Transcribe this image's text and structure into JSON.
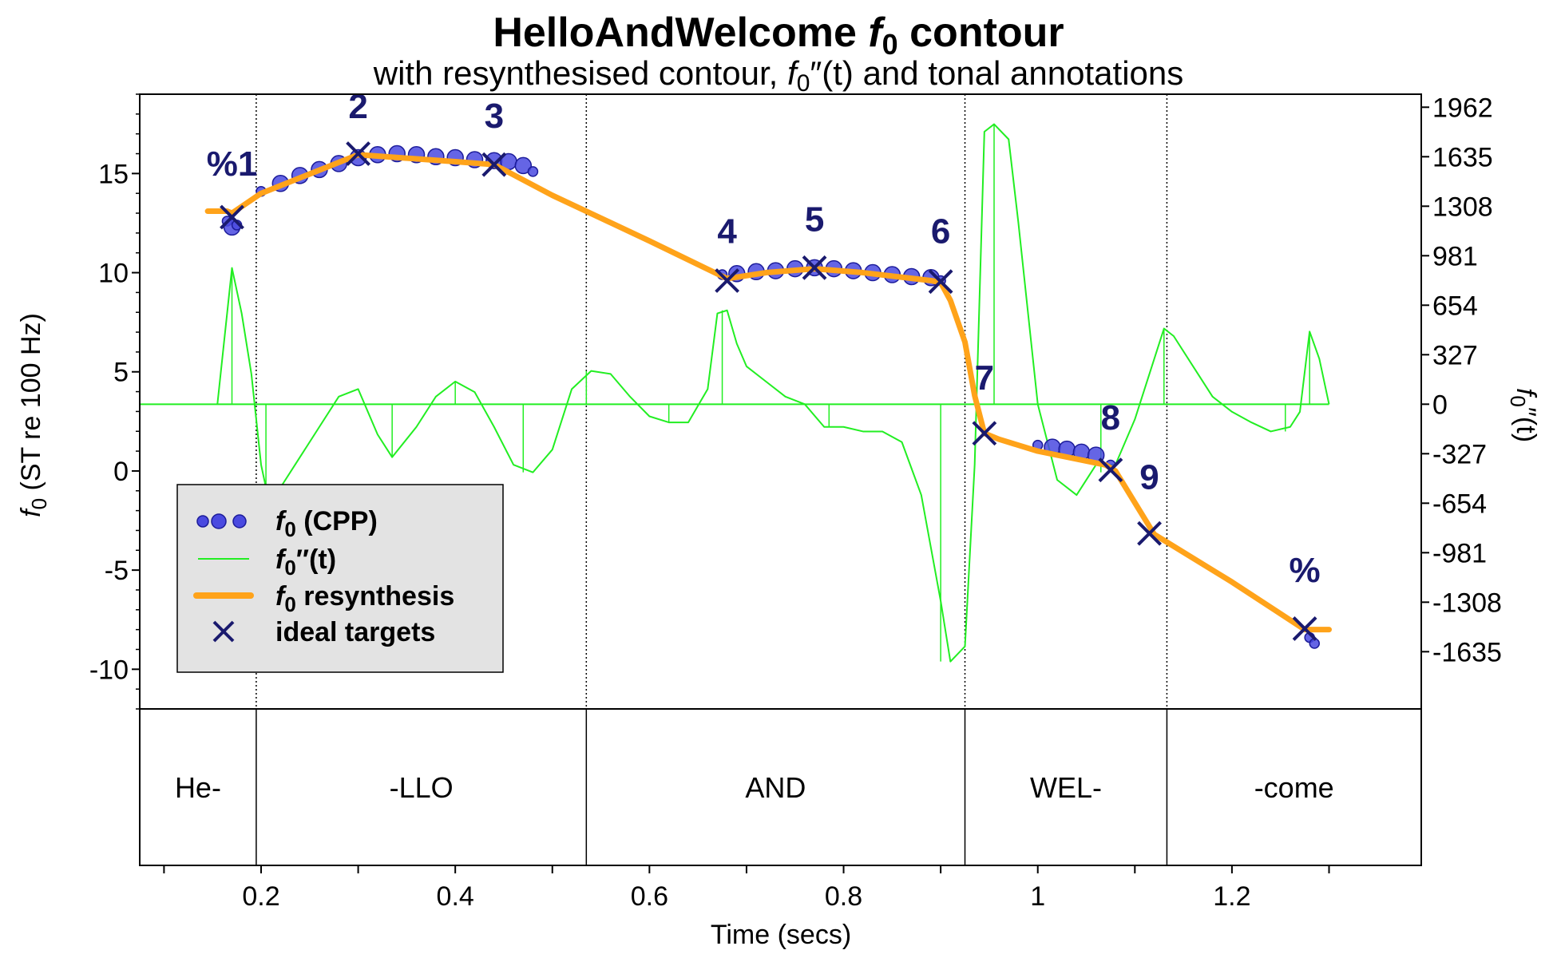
{
  "colors": {
    "cpp": "#4a4ae0",
    "cpp_edge": "#1c1c9a",
    "deriv": "#22ee22",
    "resynth": "#ffa31a",
    "target": "#1a1a6e",
    "legend_bg": "#e3e3e3"
  },
  "chart_data": {
    "type": "line",
    "title_main": "HelloAndWelcome ",
    "title_f": "f",
    "title_sub": "0",
    "title_end": " contour",
    "subtitle_a": "with resynthesised contour, ",
    "subtitle_f": "f",
    "subtitle_sub": "0",
    "subtitle_b": "″(t) and tonal annotations",
    "xlabel": "Time (secs)",
    "ylabel_f": "f",
    "ylabel_sub": "0",
    "ylabel_rest": " (ST re 100 Hz)",
    "y2label_f": "f",
    "y2label_sub": "0",
    "y2label_rest": "″(t)",
    "xlim": [
      0.075,
      1.395
    ],
    "ylim": [
      -12,
      19
    ],
    "y2lim": [
      -2013,
      2048
    ],
    "x_ticks": [
      0.1,
      0.2,
      0.3,
      0.4,
      0.5,
      0.6,
      0.7,
      0.8,
      0.9,
      1.0,
      1.1,
      1.2,
      1.3
    ],
    "x_tick_labels": [
      {
        "value": 0.2,
        "label": "0.2"
      },
      {
        "value": 0.4,
        "label": "0.4"
      },
      {
        "value": 0.6,
        "label": "0.6"
      },
      {
        "value": 0.8,
        "label": "0.8"
      },
      {
        "value": 1.0,
        "label": "1"
      },
      {
        "value": 1.2,
        "label": "1.2"
      }
    ],
    "y_ticks": [
      -10,
      -5,
      0,
      5,
      10,
      15
    ],
    "y_tick_labels": [
      "-10",
      "-5",
      "0",
      "5",
      "10",
      "15"
    ],
    "y2_ticks": [
      -1635,
      -1308,
      -981,
      -654,
      -327,
      0,
      327,
      654,
      981,
      1308,
      1635,
      1962
    ],
    "y2_tick_labels": [
      "-1635",
      "-1308",
      "-981",
      "-654",
      "-327",
      "0",
      "327",
      "654",
      "981",
      "1308",
      "1635",
      "1962"
    ],
    "syllable_boundaries": [
      0.195,
      0.535,
      0.925,
      1.133
    ],
    "syllables": [
      {
        "label": "He-",
        "start": 0.075,
        "end": 0.195
      },
      {
        "label": "-LLO",
        "start": 0.195,
        "end": 0.535
      },
      {
        "label": "AND",
        "start": 0.535,
        "end": 0.925
      },
      {
        "label": "WEL-",
        "start": 0.925,
        "end": 1.133
      },
      {
        "label": "-come",
        "start": 1.133,
        "end": 1.395
      }
    ],
    "series": [
      {
        "name": "f0 (CPP)",
        "kind": "scatter",
        "segments": [
          [
            [
              0.165,
              12.6
            ],
            [
              0.17,
              12.3
            ],
            [
              0.175,
              12.4
            ]
          ],
          [
            [
              0.2,
              14.1
            ],
            [
              0.22,
              14.5
            ],
            [
              0.24,
              14.9
            ],
            [
              0.26,
              15.2
            ],
            [
              0.28,
              15.5
            ],
            [
              0.3,
              15.8
            ],
            [
              0.32,
              15.95
            ],
            [
              0.34,
              16.0
            ],
            [
              0.36,
              15.95
            ],
            [
              0.38,
              15.85
            ],
            [
              0.4,
              15.8
            ],
            [
              0.42,
              15.7
            ],
            [
              0.44,
              15.65
            ],
            [
              0.455,
              15.6
            ],
            [
              0.47,
              15.4
            ],
            [
              0.48,
              15.1
            ]
          ],
          [
            [
              0.675,
              9.9
            ],
            [
              0.69,
              9.95
            ],
            [
              0.71,
              10.05
            ],
            [
              0.73,
              10.1
            ],
            [
              0.75,
              10.2
            ],
            [
              0.77,
              10.25
            ],
            [
              0.79,
              10.2
            ],
            [
              0.81,
              10.1
            ],
            [
              0.83,
              10.0
            ],
            [
              0.85,
              9.9
            ],
            [
              0.87,
              9.8
            ],
            [
              0.89,
              9.75
            ],
            [
              0.9,
              9.6
            ]
          ],
          [
            [
              1.0,
              1.3
            ],
            [
              1.015,
              1.2
            ],
            [
              1.03,
              1.1
            ],
            [
              1.045,
              0.95
            ],
            [
              1.06,
              0.8
            ],
            [
              1.075,
              0.3
            ]
          ],
          [
            [
              1.28,
              -8.4
            ],
            [
              1.285,
              -8.7
            ]
          ]
        ]
      },
      {
        "name": "f0″(t)",
        "kind": "stem-line",
        "points": [
          [
            0.155,
            0
          ],
          [
            0.17,
            900
          ],
          [
            0.18,
            600
          ],
          [
            0.19,
            200
          ],
          [
            0.2,
            -400
          ],
          [
            0.21,
            -700
          ],
          [
            0.22,
            -550
          ],
          [
            0.24,
            -350
          ],
          [
            0.26,
            -150
          ],
          [
            0.28,
            50
          ],
          [
            0.3,
            100
          ],
          [
            0.32,
            -200
          ],
          [
            0.335,
            -350
          ],
          [
            0.36,
            -150
          ],
          [
            0.38,
            50
          ],
          [
            0.4,
            150
          ],
          [
            0.42,
            80
          ],
          [
            0.44,
            -150
          ],
          [
            0.46,
            -400
          ],
          [
            0.48,
            -450
          ],
          [
            0.5,
            -300
          ],
          [
            0.52,
            100
          ],
          [
            0.54,
            220
          ],
          [
            0.56,
            200
          ],
          [
            0.58,
            50
          ],
          [
            0.6,
            -80
          ],
          [
            0.62,
            -120
          ],
          [
            0.64,
            -120
          ],
          [
            0.66,
            100
          ],
          [
            0.67,
            600
          ],
          [
            0.68,
            620
          ],
          [
            0.69,
            400
          ],
          [
            0.7,
            250
          ],
          [
            0.72,
            150
          ],
          [
            0.74,
            50
          ],
          [
            0.76,
            0
          ],
          [
            0.78,
            -150
          ],
          [
            0.8,
            -150
          ],
          [
            0.82,
            -180
          ],
          [
            0.84,
            -180
          ],
          [
            0.86,
            -250
          ],
          [
            0.88,
            -600
          ],
          [
            0.9,
            -1300
          ],
          [
            0.91,
            -1700
          ],
          [
            0.925,
            -1600
          ],
          [
            0.935,
            -400
          ],
          [
            0.945,
            1800
          ],
          [
            0.955,
            1850
          ],
          [
            0.97,
            1750
          ],
          [
            0.98,
            1200
          ],
          [
            0.99,
            600
          ],
          [
            1.0,
            0
          ],
          [
            1.02,
            -500
          ],
          [
            1.04,
            -600
          ],
          [
            1.06,
            -400
          ],
          [
            1.08,
            -400
          ],
          [
            1.1,
            -100
          ],
          [
            1.12,
            300
          ],
          [
            1.13,
            500
          ],
          [
            1.14,
            450
          ],
          [
            1.16,
            250
          ],
          [
            1.18,
            50
          ],
          [
            1.2,
            -50
          ],
          [
            1.22,
            -120
          ],
          [
            1.24,
            -180
          ],
          [
            1.26,
            -150
          ],
          [
            1.27,
            -50
          ],
          [
            1.28,
            480
          ],
          [
            1.29,
            300
          ],
          [
            1.3,
            0
          ]
        ],
        "stems": [
          [
            0.17,
            900
          ],
          [
            0.205,
            -700
          ],
          [
            0.335,
            -350
          ],
          [
            0.4,
            150
          ],
          [
            0.47,
            -450
          ],
          [
            0.535,
            220
          ],
          [
            0.62,
            -120
          ],
          [
            0.675,
            620
          ],
          [
            0.785,
            -150
          ],
          [
            0.9,
            -1700
          ],
          [
            0.955,
            1850
          ],
          [
            1.065,
            -450
          ],
          [
            1.13,
            500
          ],
          [
            1.255,
            -180
          ],
          [
            1.28,
            480
          ]
        ]
      },
      {
        "name": "f0 resynthesis",
        "kind": "line",
        "points": [
          [
            0.145,
            13.1
          ],
          [
            0.165,
            13.1
          ],
          [
            0.17,
            13.0
          ],
          [
            0.2,
            14.0
          ],
          [
            0.3,
            15.95
          ],
          [
            0.4,
            15.6
          ],
          [
            0.44,
            15.45
          ],
          [
            0.5,
            13.9
          ],
          [
            0.6,
            11.6
          ],
          [
            0.68,
            9.7
          ],
          [
            0.72,
            10.0
          ],
          [
            0.77,
            10.2
          ],
          [
            0.82,
            10.0
          ],
          [
            0.89,
            9.6
          ],
          [
            0.9,
            9.5
          ],
          [
            0.91,
            8.6
          ],
          [
            0.925,
            6.5
          ],
          [
            0.935,
            3.8
          ],
          [
            0.945,
            1.9
          ],
          [
            0.96,
            1.6
          ],
          [
            1.0,
            1.0
          ],
          [
            1.07,
            0.3
          ],
          [
            1.08,
            0.0
          ],
          [
            1.12,
            -3.2
          ],
          [
            1.2,
            -5.6
          ],
          [
            1.275,
            -8.0
          ],
          [
            1.29,
            -8.0
          ],
          [
            1.3,
            -8.0
          ]
        ]
      },
      {
        "name": "ideal targets",
        "kind": "markers",
        "points": [
          [
            0.17,
            12.8
          ],
          [
            0.3,
            16.0
          ],
          [
            0.44,
            15.45
          ],
          [
            0.68,
            9.6
          ],
          [
            0.77,
            10.25
          ],
          [
            0.9,
            9.55
          ],
          [
            0.945,
            1.9
          ],
          [
            1.075,
            0.05
          ],
          [
            1.115,
            -3.15
          ],
          [
            1.275,
            -7.95
          ]
        ],
        "labels": [
          "%1",
          "2",
          "3",
          "4",
          "5",
          "6",
          "7",
          "8",
          "9",
          "%"
        ],
        "label_positions": [
          [
            0.17,
            14.9
          ],
          [
            0.3,
            17.8
          ],
          [
            0.44,
            17.3
          ],
          [
            0.68,
            11.5
          ],
          [
            0.77,
            12.1
          ],
          [
            0.9,
            11.5
          ],
          [
            0.945,
            4.1
          ],
          [
            1.075,
            2.1
          ],
          [
            1.115,
            -0.9
          ],
          [
            1.275,
            -5.6
          ]
        ]
      }
    ],
    "legend": {
      "position": "bottom-left",
      "items": [
        {
          "f": "f",
          "sub": "0",
          "rest": " (CPP)"
        },
        {
          "f": "f",
          "sub": "0",
          "rest": "″(t)"
        },
        {
          "f": "f",
          "sub": "0",
          "rest": " resynthesis"
        },
        {
          "f": "",
          "sub": "",
          "rest": "ideal targets"
        }
      ]
    }
  }
}
